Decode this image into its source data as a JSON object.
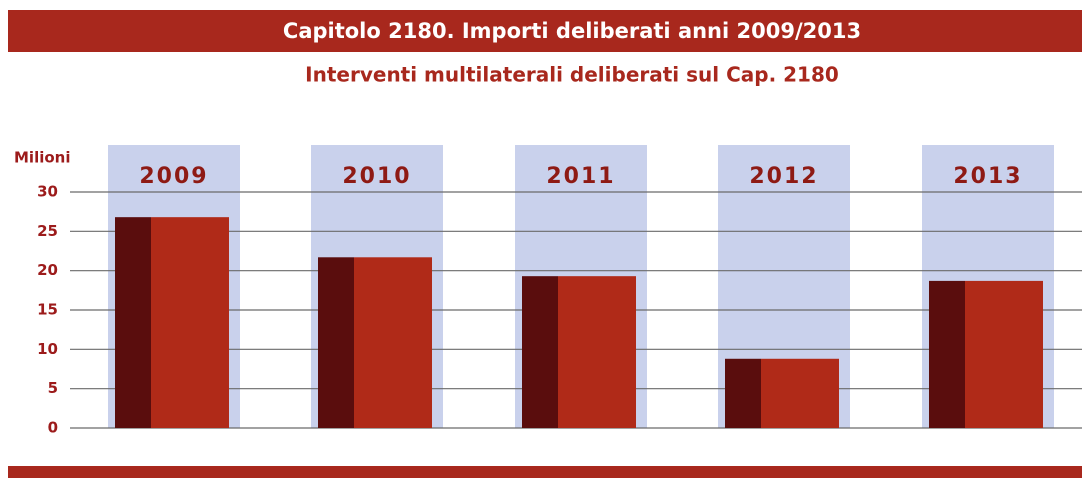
{
  "chart_data": {
    "type": "bar",
    "title": "Capitolo 2180. Importi deliberati anni 2009/2013",
    "subtitle": "Interventi multilaterali deliberati sul Cap. 2180",
    "y_label": "Milioni",
    "categories": [
      "2009",
      "2010",
      "2011",
      "2012",
      "2013"
    ],
    "values": [
      26.8,
      21.7,
      19.3,
      8.8,
      18.7
    ],
    "color": "#b02a18",
    "ylim": [
      0,
      30
    ],
    "yticks": [
      0,
      5,
      10,
      15,
      20,
      25,
      30
    ],
    "grid": true
  }
}
